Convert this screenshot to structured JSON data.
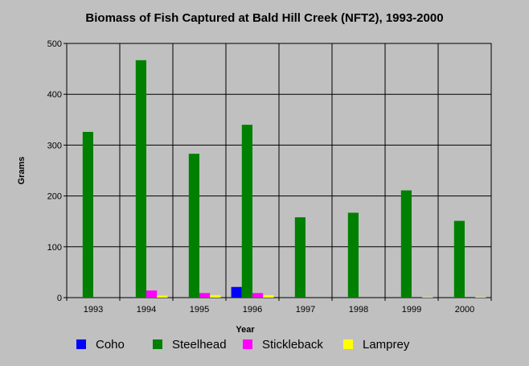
{
  "chart_data": {
    "type": "bar",
    "title": "Biomass of Fish Captured at Bald Hill Creek (NFT2), 1993-2000",
    "xlabel": "Year",
    "ylabel": "Grams",
    "ylim": [
      0,
      500
    ],
    "yticks": [
      "0",
      "100",
      "200",
      "300",
      "400",
      "500"
    ],
    "categories": [
      "1993",
      "1994",
      "1995",
      "1996",
      "1997",
      "1998",
      "1999",
      "2000"
    ],
    "grid": true,
    "legend_position": "bottom",
    "series": [
      {
        "name": "Coho",
        "color": "#0000ff",
        "values": [
          0,
          0,
          0,
          21,
          0,
          0,
          0,
          0
        ]
      },
      {
        "name": "Steelhead",
        "color": "#008000",
        "values": [
          326,
          467,
          283,
          340,
          158,
          167,
          211,
          151
        ]
      },
      {
        "name": "Stickleback",
        "color": "#ff00ff",
        "values": [
          0,
          14,
          9,
          9,
          0,
          0,
          0,
          0
        ]
      },
      {
        "name": "Lamprey",
        "color": "#ffff00",
        "values": [
          0,
          4,
          5,
          5,
          0,
          0,
          1,
          1
        ]
      }
    ]
  }
}
